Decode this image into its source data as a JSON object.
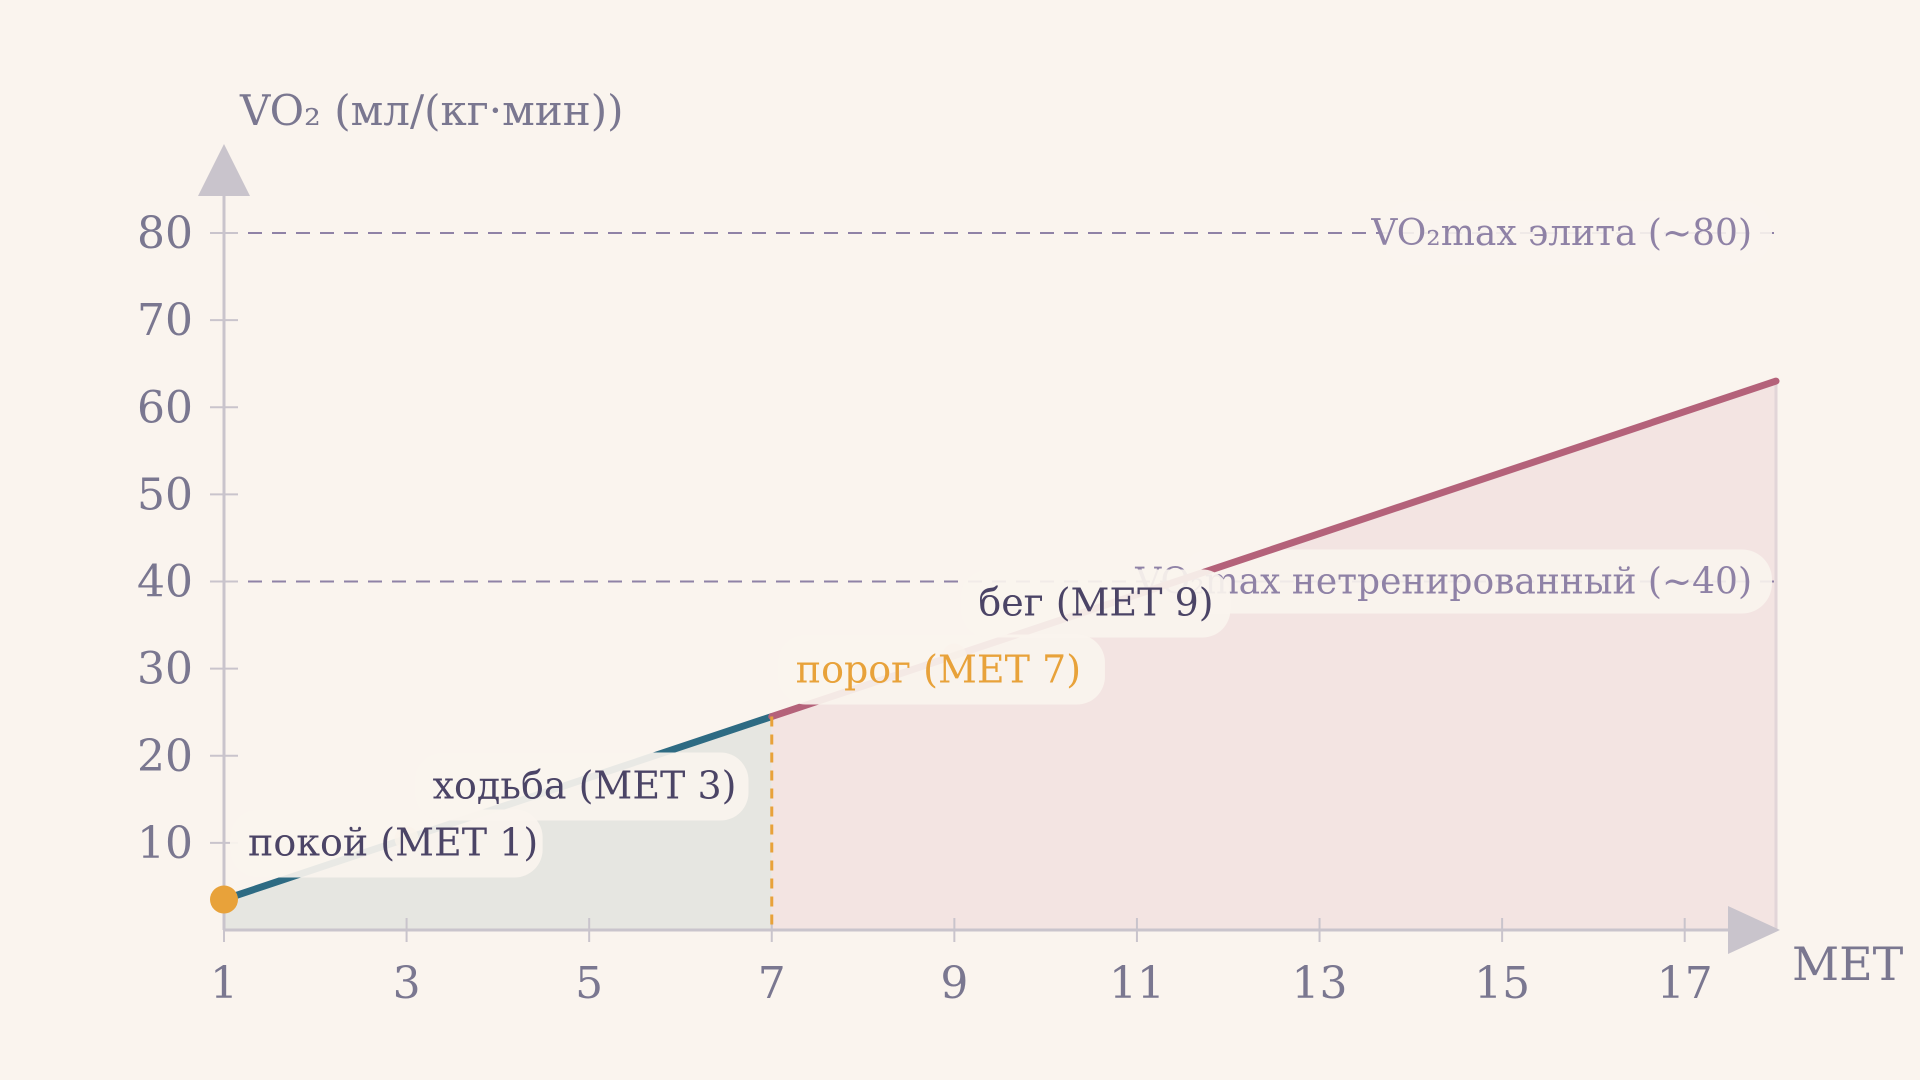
{
  "chart_data": {
    "type": "line",
    "ylabel": "VO₂ (мл/(кг·мин))",
    "xlabel": "МЕТ",
    "xlim": [
      1,
      18
    ],
    "ylim": [
      0,
      80
    ],
    "x_ticks": [
      1,
      3,
      5,
      7,
      9,
      11,
      13,
      15,
      17
    ],
    "y_ticks": [
      10,
      20,
      30,
      40,
      50,
      60,
      70,
      80
    ],
    "series": [
      {
        "x": [
          1,
          18
        ],
        "y": [
          3.5,
          63
        ]
      }
    ],
    "reference_lines": [
      {
        "y": 80,
        "label": "VO₂max элита (~80)"
      },
      {
        "y": 40,
        "label": "VO₂max нетренированный (~40)"
      }
    ],
    "threshold": {
      "x": 7,
      "label": "порог (МЕТ 7)"
    },
    "points": [
      {
        "x": 1,
        "label": "покой (МЕТ 1)"
      },
      {
        "x": 3,
        "label": "ходьба (МЕТ 3)"
      },
      {
        "x": 9,
        "label": "бег (МЕТ 9)"
      }
    ],
    "colors": {
      "low_segment": "#2e6b83",
      "high_segment": "#b4627a",
      "low_fill": "#e6e6e1",
      "high_fill": "#f3e4e2",
      "threshold": "#e8a23a",
      "reference": "#8f82a6",
      "axis": "#c9c4cc",
      "text": "#7a7790",
      "label_text": "#4b4466"
    }
  }
}
